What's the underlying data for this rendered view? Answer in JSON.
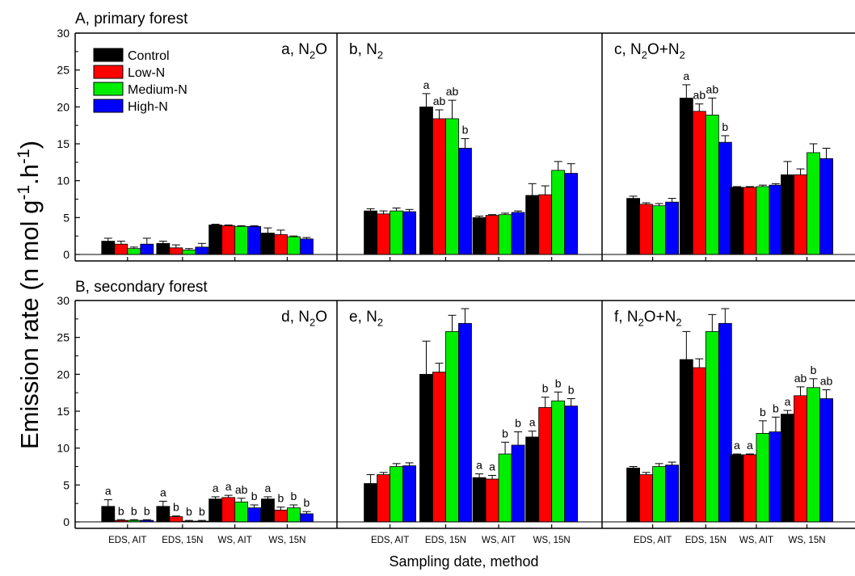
{
  "figure": {
    "ylabel": "Emission rate (n mol g-1.h-1)",
    "xlabel": "Sampling date, method",
    "sections": [
      "A, primary forest",
      "B, secondary forest"
    ]
  },
  "colors": {
    "Control": "#000000",
    "Low-N": "#ff0000",
    "Medium-N": "#00ee00",
    "High-N": "#0000ff"
  },
  "chart_data": [
    {
      "id": "a",
      "type": "bar",
      "row": 0,
      "col": 0,
      "title": "a, N2O",
      "categories": [
        "EDS, AIT",
        "EDS, 15N",
        "WS, AIT",
        "WS, 15N"
      ],
      "ylim": [
        0,
        30
      ],
      "yticks": [
        0,
        5,
        10,
        15,
        20,
        25,
        30
      ],
      "legend": "top-left",
      "series": [
        {
          "name": "Control",
          "values": [
            1.8,
            1.5,
            4.0,
            2.9
          ],
          "errors": [
            0.4,
            0.3,
            0.1,
            0.7
          ]
        },
        {
          "name": "Low-N",
          "values": [
            1.4,
            0.9,
            3.9,
            2.7
          ],
          "errors": [
            0.4,
            0.4,
            0.1,
            0.6
          ]
        },
        {
          "name": "Medium-N",
          "values": [
            0.8,
            0.6,
            3.8,
            2.4
          ],
          "errors": [
            0.2,
            0.2,
            0.1,
            0.1
          ]
        },
        {
          "name": "High-N",
          "values": [
            1.4,
            1.0,
            3.8,
            2.1
          ],
          "errors": [
            0.8,
            0.5,
            0.1,
            0.2
          ]
        }
      ]
    },
    {
      "id": "b",
      "type": "bar",
      "row": 0,
      "col": 1,
      "title": "b, N2",
      "categories": [
        "EDS, AIT",
        "EDS, 15N",
        "WS, AIT",
        "WS, 15N"
      ],
      "ylim": [
        0,
        30
      ],
      "series": [
        {
          "name": "Control",
          "values": [
            5.9,
            20.0,
            5.0,
            8.0
          ],
          "errors": [
            0.3,
            1.8,
            0.2,
            1.6
          ],
          "letters": [
            "",
            "a",
            "",
            ""
          ]
        },
        {
          "name": "Low-N",
          "values": [
            5.5,
            18.4,
            5.3,
            8.1
          ],
          "errors": [
            0.4,
            1.2,
            0.1,
            1.2
          ],
          "letters": [
            "",
            "ab",
            "",
            ""
          ]
        },
        {
          "name": "Medium-N",
          "values": [
            5.9,
            18.4,
            5.4,
            11.4
          ],
          "errors": [
            0.4,
            2.5,
            0.2,
            1.2
          ],
          "letters": [
            "",
            "ab",
            "",
            ""
          ]
        },
        {
          "name": "High-N",
          "values": [
            5.8,
            14.4,
            5.7,
            11.0
          ],
          "errors": [
            0.3,
            1.3,
            0.2,
            1.3
          ],
          "letters": [
            "",
            "b",
            "",
            ""
          ]
        }
      ]
    },
    {
      "id": "c",
      "type": "bar",
      "row": 0,
      "col": 2,
      "title": "c, N2O+N2",
      "categories": [
        "EDS, AIT",
        "EDS, 15N",
        "WS, AIT",
        "WS, 15N"
      ],
      "ylim": [
        0,
        30
      ],
      "series": [
        {
          "name": "Control",
          "values": [
            7.6,
            21.2,
            9.1,
            10.8
          ],
          "errors": [
            0.3,
            1.8,
            0.1,
            1.8
          ],
          "letters": [
            "",
            "a",
            "",
            ""
          ]
        },
        {
          "name": "Low-N",
          "values": [
            6.8,
            19.4,
            9.1,
            10.8
          ],
          "errors": [
            0.2,
            1.0,
            0.1,
            0.8
          ],
          "letters": [
            "",
            "ab",
            "",
            ""
          ]
        },
        {
          "name": "Medium-N",
          "values": [
            6.6,
            18.9,
            9.2,
            13.8
          ],
          "errors": [
            0.3,
            2.3,
            0.2,
            1.2
          ],
          "letters": [
            "",
            "ab",
            "",
            ""
          ]
        },
        {
          "name": "High-N",
          "values": [
            7.1,
            15.2,
            9.4,
            13.0
          ],
          "errors": [
            0.5,
            0.9,
            0.2,
            1.4
          ],
          "letters": [
            "",
            "b",
            "",
            ""
          ]
        }
      ]
    },
    {
      "id": "d",
      "type": "bar",
      "row": 1,
      "col": 0,
      "title": "d, N2O",
      "categories": [
        "EDS, AIT",
        "EDS, 15N",
        "WS, AIT",
        "WS, 15N"
      ],
      "ylim": [
        0,
        30
      ],
      "yticks": [
        0,
        5,
        10,
        15,
        20,
        25,
        30
      ],
      "series": [
        {
          "name": "Control",
          "values": [
            2.1,
            2.1,
            3.1,
            3.1
          ],
          "errors": [
            0.9,
            0.7,
            0.3,
            0.3
          ],
          "letters": [
            "a",
            "a",
            "a",
            "a"
          ]
        },
        {
          "name": "Low-N",
          "values": [
            0.2,
            0.7,
            3.3,
            1.6
          ],
          "errors": [
            0.1,
            0.1,
            0.3,
            0.4
          ],
          "letters": [
            "b",
            "b",
            "a",
            "b"
          ]
        },
        {
          "name": "Medium-N",
          "values": [
            0.2,
            0.1,
            2.7,
            1.9
          ],
          "errors": [
            0.1,
            0.1,
            0.5,
            0.4
          ],
          "letters": [
            "b",
            "b",
            "ab",
            "b"
          ]
        },
        {
          "name": "High-N",
          "values": [
            0.2,
            0.1,
            1.9,
            1.1
          ],
          "errors": [
            0.1,
            0.1,
            0.4,
            0.3
          ],
          "letters": [
            "b",
            "b",
            "b",
            "b"
          ]
        }
      ]
    },
    {
      "id": "e",
      "type": "bar",
      "row": 1,
      "col": 1,
      "title": "e, N2",
      "categories": [
        "EDS, AIT",
        "EDS, 15N",
        "WS, AIT",
        "WS, 15N"
      ],
      "ylim": [
        0,
        30
      ],
      "series": [
        {
          "name": "Control",
          "values": [
            5.2,
            20.0,
            6.0,
            11.5
          ],
          "errors": [
            1.2,
            4.5,
            0.5,
            0.8
          ],
          "letters": [
            "",
            "",
            "a",
            "a"
          ]
        },
        {
          "name": "Low-N",
          "values": [
            6.4,
            20.3,
            5.8,
            15.5
          ],
          "errors": [
            0.3,
            1.2,
            0.5,
            1.4
          ],
          "letters": [
            "",
            "",
            "a",
            "b"
          ]
        },
        {
          "name": "Medium-N",
          "values": [
            7.5,
            25.8,
            9.2,
            16.4
          ],
          "errors": [
            0.4,
            2.2,
            1.6,
            1.2
          ],
          "letters": [
            "",
            "",
            "b",
            "b"
          ]
        },
        {
          "name": "High-N",
          "values": [
            7.6,
            26.9,
            10.4,
            15.7
          ],
          "errors": [
            0.4,
            2.0,
            1.8,
            1.0
          ],
          "letters": [
            "",
            "",
            "b",
            "b"
          ]
        }
      ]
    },
    {
      "id": "f",
      "type": "bar",
      "row": 1,
      "col": 2,
      "title": "f, N2O+N2",
      "categories": [
        "EDS, AIT",
        "EDS, 15N",
        "WS, AIT",
        "WS, 15N"
      ],
      "ylim": [
        0,
        30
      ],
      "series": [
        {
          "name": "Control",
          "values": [
            7.3,
            22.0,
            9.1,
            14.6
          ],
          "errors": [
            0.2,
            3.8,
            0.1,
            0.5
          ],
          "letters": [
            "",
            "",
            "a",
            "a"
          ]
        },
        {
          "name": "Low-N",
          "values": [
            6.4,
            20.9,
            9.1,
            17.1
          ],
          "errors": [
            0.3,
            1.2,
            0.1,
            1.2
          ],
          "letters": [
            "",
            "",
            "a",
            "ab"
          ]
        },
        {
          "name": "Medium-N",
          "values": [
            7.5,
            25.8,
            12.0,
            18.2
          ],
          "errors": [
            0.4,
            2.3,
            1.7,
            1.2
          ],
          "letters": [
            "",
            "",
            "b",
            "b"
          ]
        },
        {
          "name": "High-N",
          "values": [
            7.7,
            26.9,
            12.2,
            16.7
          ],
          "errors": [
            0.4,
            2.0,
            2.0,
            1.2
          ],
          "letters": [
            "",
            "",
            "b",
            "ab"
          ]
        }
      ]
    }
  ]
}
